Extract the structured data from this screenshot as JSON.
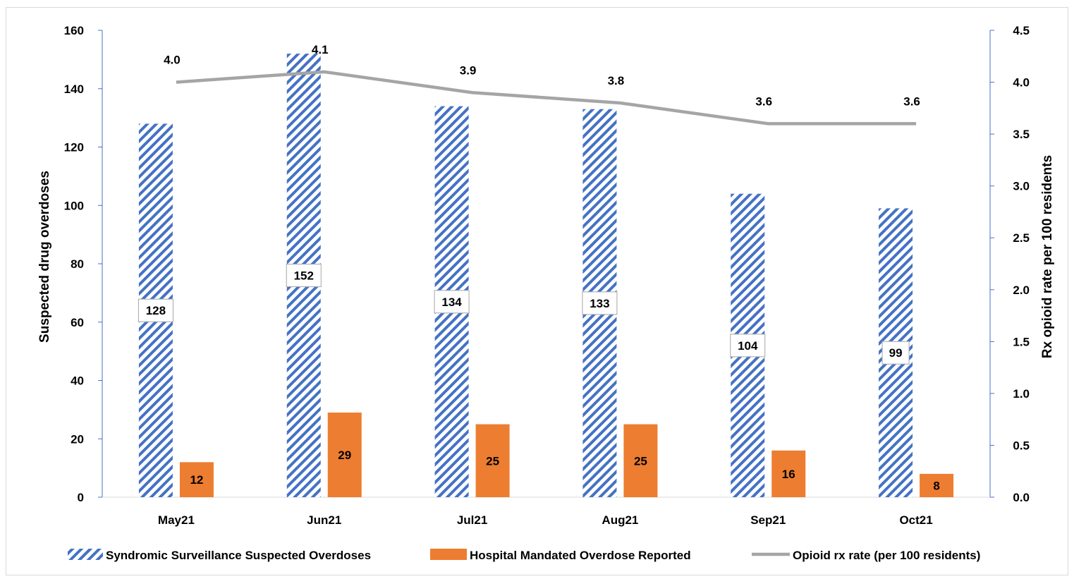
{
  "chart_data": {
    "type": "bar",
    "categories": [
      "May21",
      "Jun21",
      "Jul21",
      "Aug21",
      "Sep21",
      "Oct21"
    ],
    "series": [
      {
        "name": "Syndromic Surveillance Suspected Overdoses",
        "kind": "bar",
        "axis": "left",
        "pattern": "diagonal-stripes",
        "color": "#4472c4",
        "values": [
          128,
          152,
          134,
          133,
          104,
          99
        ]
      },
      {
        "name": "Hospital Mandated Overdose Reported",
        "kind": "bar",
        "axis": "left",
        "color": "#ed7d31",
        "values": [
          12,
          29,
          25,
          25,
          16,
          8
        ]
      },
      {
        "name": "Opioid rx rate (per 100 residents)",
        "kind": "line",
        "axis": "right",
        "color": "#a5a5a5",
        "values": [
          4.0,
          4.1,
          3.9,
          3.8,
          3.6,
          3.6
        ],
        "labels": [
          "4.0",
          "4.1",
          "3.9",
          "3.8",
          "3.6",
          "3.6"
        ]
      }
    ],
    "ylabel": "Suspected drug overdoses",
    "ylim": [
      0,
      160
    ],
    "yticks": [
      0,
      20,
      40,
      60,
      80,
      100,
      120,
      140,
      160
    ],
    "y2label": "Rx opioid rate per 100 residents",
    "y2lim": [
      0,
      4.5
    ],
    "y2ticks": [
      "0.0",
      "0.5",
      "1.0",
      "1.5",
      "2.0",
      "2.5",
      "3.0",
      "3.5",
      "4.0",
      "4.5"
    ],
    "grid": false,
    "legend": "bottom",
    "axis_color": "#4472c4"
  }
}
